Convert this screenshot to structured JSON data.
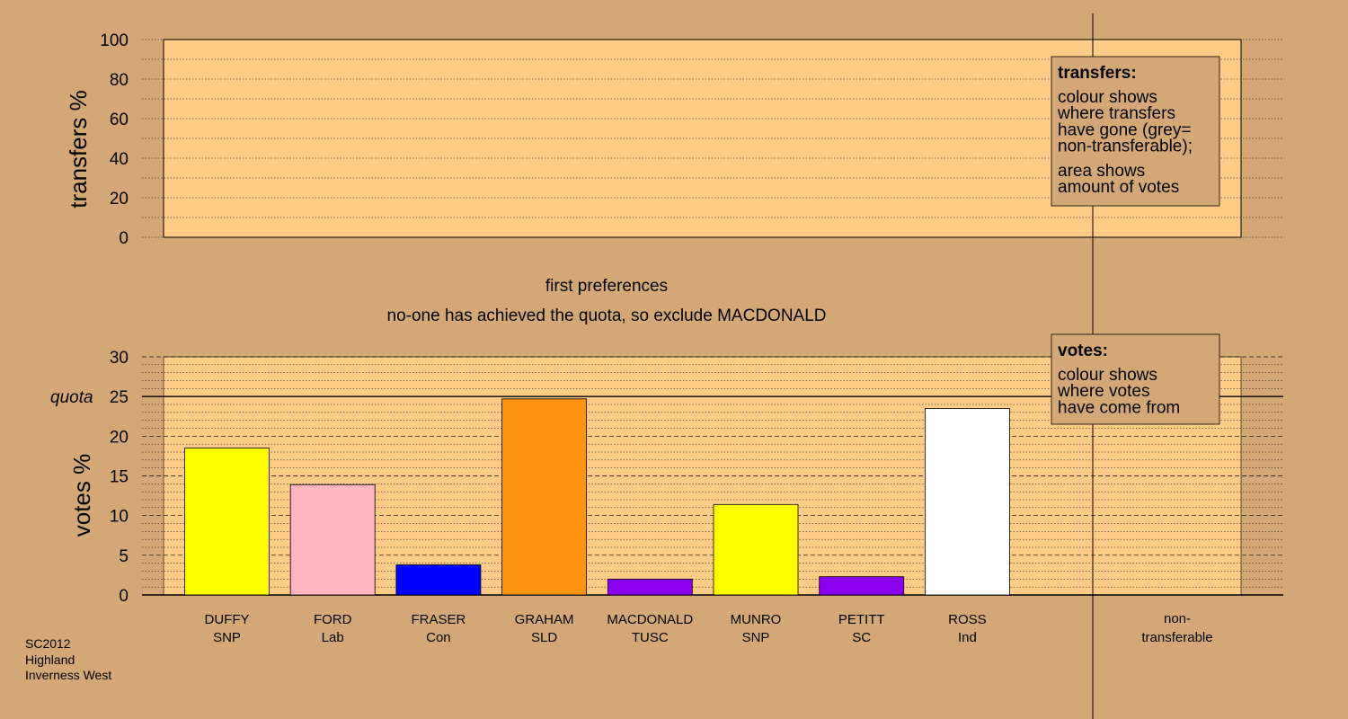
{
  "chart_data": [
    {
      "type": "bar",
      "panel": "transfers",
      "ylabel": "transfers %",
      "ylim": [
        0,
        100
      ],
      "yticks": [
        0,
        20,
        40,
        60,
        80,
        100
      ],
      "series": [],
      "legend": {
        "title": "transfers:",
        "lines": [
          "colour shows",
          "where transfers",
          "have gone (grey=",
          "non-transferable);",
          "area shows",
          "amount of votes"
        ]
      }
    },
    {
      "type": "bar",
      "panel": "votes",
      "ylabel": "votes %",
      "ylim": [
        0,
        30
      ],
      "yticks": [
        0,
        5,
        10,
        15,
        20,
        25,
        30
      ],
      "quota": {
        "label": "quota",
        "value": 25
      },
      "categories": [
        {
          "name": "DUFFY",
          "party": "SNP",
          "value": 18.5,
          "color": "#ffff00"
        },
        {
          "name": "FORD",
          "party": "Lab",
          "value": 13.9,
          "color": "#ffb6c1"
        },
        {
          "name": "FRASER",
          "party": "Con",
          "value": 3.8,
          "color": "#0000ff"
        },
        {
          "name": "GRAHAM",
          "party": "SLD",
          "value": 24.7,
          "color": "#ff9410"
        },
        {
          "name": "MACDONALD",
          "party": "TUSC",
          "value": 2.0,
          "color": "#8b00ee"
        },
        {
          "name": "MUNRO",
          "party": "SNP",
          "value": 11.4,
          "color": "#ffff00"
        },
        {
          "name": "PETITT",
          "party": "SC",
          "value": 2.3,
          "color": "#8b00ee"
        },
        {
          "name": "ROSS",
          "party": "Ind",
          "value": 23.5,
          "color": "#ffffff"
        }
      ],
      "nontransferable": {
        "line1": "non-",
        "line2": "transferable",
        "value": 0
      },
      "legend": {
        "title": "votes:",
        "lines": [
          "colour shows",
          "where votes",
          "have come from"
        ]
      }
    }
  ],
  "stage_title": "first preferences",
  "stage_note": "no-one has achieved the quota, so exclude MACDONALD",
  "footer": [
    "SC2012",
    "Highland",
    "Inverness West"
  ],
  "colors": {
    "background": "#d4a876",
    "plot_fill": "#ffcc88"
  }
}
